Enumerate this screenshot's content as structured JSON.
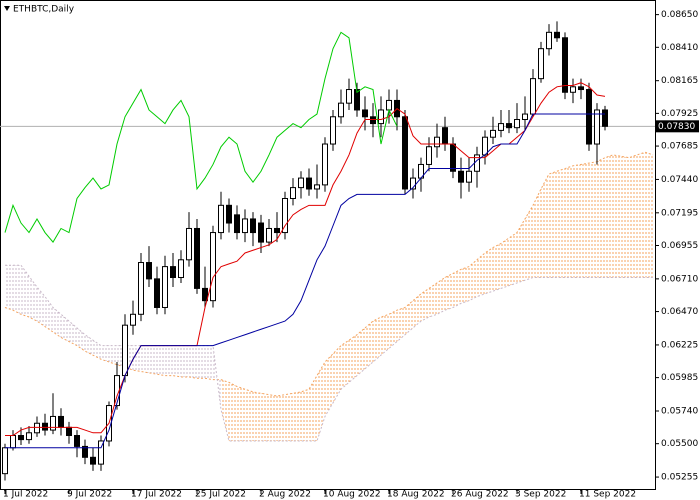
{
  "chart_data": {
    "type": "candlestick",
    "title": "ETHBTC,Daily",
    "categories": [
      "1 Jul 2022",
      null,
      null,
      null,
      null,
      null,
      null,
      null,
      "9 Jul 2022",
      null,
      null,
      null,
      null,
      null,
      null,
      null,
      "17 Jul 2022",
      null,
      null,
      null,
      null,
      null,
      null,
      null,
      "25 Jul 2022",
      null,
      null,
      null,
      null,
      null,
      null,
      null,
      "2 Aug 2022",
      null,
      null,
      null,
      null,
      null,
      null,
      null,
      "10 Aug 2022",
      null,
      null,
      null,
      null,
      null,
      null,
      null,
      "18 Aug 2022",
      null,
      null,
      null,
      null,
      null,
      null,
      null,
      "26 Aug 2022",
      null,
      null,
      null,
      null,
      null,
      null,
      null,
      "3 Sep 2022",
      null,
      null,
      null,
      null,
      null,
      null,
      null,
      "11 Sep 2022",
      null,
      null,
      null,
      null,
      null,
      null,
      null,
      null,
      null
    ],
    "ohlc": {
      "open": [
        0.0528,
        0.0547,
        0.0556,
        0.0553,
        0.0558,
        0.0565,
        0.056,
        0.057,
        0.0562,
        0.0556,
        0.0548,
        0.054,
        0.0535,
        0.0552,
        0.0578,
        0.06,
        0.0637,
        0.0645,
        0.0683,
        0.0671,
        0.065,
        0.068,
        0.0672,
        0.0685,
        0.0708,
        0.0664,
        0.0655,
        0.0705,
        0.0725,
        0.0718,
        0.0705,
        0.0715,
        0.0712,
        0.0698,
        0.0708,
        0.0705,
        0.073,
        0.0738,
        0.0745,
        0.0737,
        0.074,
        0.077,
        0.079,
        0.08,
        0.081,
        0.0795,
        0.079,
        0.0785,
        0.0795,
        0.0802,
        0.079,
        0.0737,
        0.0745,
        0.0755,
        0.0768,
        0.0782,
        0.077,
        0.075,
        0.0742,
        0.075,
        0.0762,
        0.0775,
        0.078,
        0.0785,
        0.0782,
        0.0788,
        0.0792,
        0.0818,
        0.084,
        0.0852,
        0.0848,
        0.0808,
        0.0812,
        0.081,
        0.077,
        0.0795
      ],
      "high": [
        0.055,
        0.056,
        0.0562,
        0.0563,
        0.057,
        0.0572,
        0.0587,
        0.0576,
        0.0566,
        0.056,
        0.0553,
        0.0547,
        0.0556,
        0.0581,
        0.061,
        0.0645,
        0.0655,
        0.069,
        0.0695,
        0.068,
        0.0688,
        0.069,
        0.0692,
        0.072,
        0.0715,
        0.068,
        0.071,
        0.0735,
        0.073,
        0.0725,
        0.0722,
        0.072,
        0.0718,
        0.0715,
        0.072,
        0.0735,
        0.0745,
        0.075,
        0.0752,
        0.0755,
        0.0775,
        0.0795,
        0.081,
        0.0818,
        0.0815,
        0.0805,
        0.08,
        0.0805,
        0.081,
        0.081,
        0.0795,
        0.0752,
        0.076,
        0.0775,
        0.0785,
        0.079,
        0.0775,
        0.076,
        0.076,
        0.0768,
        0.078,
        0.079,
        0.0795,
        0.0795,
        0.08,
        0.0805,
        0.0825,
        0.0845,
        0.0858,
        0.086,
        0.0852,
        0.0818,
        0.0818,
        0.0815,
        0.08,
        0.0798
      ],
      "low": [
        0.0523,
        0.0545,
        0.0549,
        0.055,
        0.0555,
        0.0556,
        0.0557,
        0.0556,
        0.055,
        0.054,
        0.0535,
        0.053,
        0.053,
        0.0548,
        0.0575,
        0.0595,
        0.063,
        0.064,
        0.0665,
        0.0645,
        0.0645,
        0.0665,
        0.0668,
        0.068,
        0.066,
        0.065,
        0.065,
        0.07,
        0.0705,
        0.07,
        0.0698,
        0.0695,
        0.069,
        0.0695,
        0.0698,
        0.07,
        0.0725,
        0.073,
        0.0732,
        0.073,
        0.0735,
        0.0765,
        0.0785,
        0.0795,
        0.079,
        0.078,
        0.0775,
        0.0775,
        0.0785,
        0.078,
        0.0733,
        0.073,
        0.0735,
        0.075,
        0.076,
        0.0765,
        0.0745,
        0.073,
        0.0735,
        0.0738,
        0.0755,
        0.077,
        0.0775,
        0.0778,
        0.0778,
        0.078,
        0.079,
        0.0815,
        0.0835,
        0.0845,
        0.0803,
        0.08,
        0.0803,
        0.0765,
        0.0755,
        0.078
      ],
      "close": [
        0.0547,
        0.0556,
        0.0553,
        0.0558,
        0.0565,
        0.056,
        0.057,
        0.0562,
        0.0556,
        0.0548,
        0.054,
        0.0535,
        0.0552,
        0.0578,
        0.06,
        0.0637,
        0.0645,
        0.0683,
        0.0671,
        0.065,
        0.068,
        0.0672,
        0.0685,
        0.0708,
        0.0664,
        0.0655,
        0.0705,
        0.0725,
        0.0712,
        0.0705,
        0.0715,
        0.0705,
        0.0698,
        0.0708,
        0.0705,
        0.073,
        0.0738,
        0.0745,
        0.0737,
        0.074,
        0.077,
        0.079,
        0.08,
        0.081,
        0.0795,
        0.079,
        0.0785,
        0.0795,
        0.0802,
        0.079,
        0.0737,
        0.0745,
        0.0755,
        0.0768,
        0.0775,
        0.077,
        0.075,
        0.0742,
        0.075,
        0.0762,
        0.0775,
        0.078,
        0.0785,
        0.0782,
        0.0788,
        0.0792,
        0.0818,
        0.084,
        0.0852,
        0.0848,
        0.0808,
        0.0812,
        0.081,
        0.077,
        0.0795,
        0.0783
      ],
      "up_color": "#ffffff",
      "down_color": "#000000",
      "outline": "#000000"
    },
    "lines": [
      {
        "color": "#e00000",
        "values": [
          0.0556,
          0.0556,
          0.056,
          0.0562,
          0.0562,
          0.0562,
          0.0562,
          0.0562,
          0.0562,
          0.0562,
          0.056,
          0.0558,
          0.0558,
          0.0565,
          0.0585,
          0.06,
          0.0612,
          0.0622,
          0.0622,
          0.0622,
          0.0622,
          0.0622,
          0.0622,
          0.0622,
          0.0622,
          0.065,
          0.0672,
          0.068,
          0.0682,
          0.0684,
          0.069,
          0.0692,
          0.0694,
          0.0696,
          0.07,
          0.071,
          0.0718,
          0.0722,
          0.0725,
          0.0725,
          0.0725,
          0.074,
          0.075,
          0.0762,
          0.0778,
          0.0788,
          0.0788,
          0.0788,
          0.079,
          0.0796,
          0.0792,
          0.0776,
          0.077,
          0.077,
          0.077,
          0.077,
          0.077,
          0.0765,
          0.076,
          0.076,
          0.076,
          0.0765,
          0.077,
          0.077,
          0.0775,
          0.078,
          0.079,
          0.08,
          0.0808,
          0.0812,
          0.0813,
          0.0813,
          0.0815,
          0.0812,
          0.0806,
          0.0805
        ]
      },
      {
        "color": "#0000a0",
        "values": [
          0.0547,
          0.0547,
          0.0547,
          0.0547,
          0.0547,
          0.0547,
          0.0547,
          0.0547,
          0.0547,
          0.0547,
          0.0547,
          0.0547,
          0.0547,
          0.056,
          0.058,
          0.06,
          0.0612,
          0.0622,
          0.0622,
          0.0622,
          0.0622,
          0.0622,
          0.0622,
          0.0622,
          0.0622,
          0.0622,
          0.0622,
          0.0624,
          0.0626,
          0.0628,
          0.063,
          0.0632,
          0.0634,
          0.0636,
          0.0638,
          0.064,
          0.0645,
          0.0655,
          0.067,
          0.0685,
          0.0695,
          0.071,
          0.0725,
          0.073,
          0.0733,
          0.0733,
          0.0733,
          0.0733,
          0.0733,
          0.0733,
          0.0733,
          0.0738,
          0.0745,
          0.0752,
          0.0752,
          0.0752,
          0.0752,
          0.0752,
          0.0752,
          0.0758,
          0.0762,
          0.0768,
          0.077,
          0.077,
          0.077,
          0.078,
          0.0792,
          0.0792,
          0.0792,
          0.0792,
          0.0792,
          0.0792,
          0.0792,
          0.0792,
          0.0792,
          0.0792
        ]
      },
      {
        "color": "#00cc00",
        "values": [
          0.0705,
          0.0725,
          0.0712,
          0.0705,
          0.0715,
          0.0705,
          0.0698,
          0.0708,
          0.0705,
          0.073,
          0.0738,
          0.0745,
          0.0737,
          0.074,
          0.077,
          0.079,
          0.08,
          0.081,
          0.0795,
          0.079,
          0.0785,
          0.0795,
          0.0802,
          0.079,
          0.0737,
          0.0745,
          0.0755,
          0.0768,
          0.0775,
          0.077,
          0.075,
          0.0742,
          0.075,
          0.0762,
          0.0775,
          0.078,
          0.0785,
          0.0782,
          0.0788,
          0.0792,
          0.0818,
          0.084,
          0.0852,
          0.0848,
          0.0808,
          0.0812,
          0.081,
          0.077,
          0.0795,
          0.0783,
          null,
          null,
          null,
          null,
          null,
          null,
          null,
          null,
          null,
          null,
          null,
          null,
          null,
          null,
          null,
          null,
          null,
          null,
          null,
          null,
          null,
          null,
          null,
          null,
          null,
          null
        ]
      }
    ],
    "cloud": {
      "a": {
        "color": "#f4a460",
        "values": [
          0.065,
          0.0648,
          0.0645,
          0.0643,
          0.064,
          0.0636,
          0.0632,
          0.0628,
          0.0625,
          0.0622,
          0.0618,
          0.0615,
          0.0612,
          0.061,
          0.0608,
          0.0606,
          0.0604,
          0.0603,
          0.0602,
          0.0601,
          0.06,
          0.06,
          0.0599,
          0.0599,
          0.0598,
          0.0598,
          0.0597,
          0.0597,
          0.0595,
          0.0592,
          0.059,
          0.0588,
          0.0587,
          0.0586,
          0.0585,
          0.0586,
          0.0587,
          0.0588,
          0.059,
          0.06,
          0.061,
          0.0616,
          0.0622,
          0.0626,
          0.063,
          0.0635,
          0.064,
          0.0643,
          0.0645,
          0.0648,
          0.065,
          0.0655,
          0.066,
          0.0664,
          0.0668,
          0.0672,
          0.0675,
          0.0678,
          0.068,
          0.0685,
          0.069,
          0.0694,
          0.0697,
          0.0701,
          0.0705,
          0.0715,
          0.0725,
          0.0737,
          0.0748,
          0.075,
          0.0752,
          0.0754,
          0.0755,
          0.0756,
          0.0757,
          0.076,
          0.0762,
          0.0761,
          0.076,
          0.0762,
          0.0764,
          0.0762
        ]
      },
      "b": {
        "color": "#c8b8c8",
        "values": [
          0.0681,
          0.0681,
          0.0681,
          0.0673,
          0.0665,
          0.0658,
          0.065,
          0.0645,
          0.064,
          0.0635,
          0.063,
          0.0626,
          0.0622,
          0.0622,
          0.0622,
          0.0622,
          0.0622,
          0.0622,
          0.0622,
          0.0622,
          0.0622,
          0.0622,
          0.0622,
          0.0622,
          0.0622,
          0.0622,
          0.0622,
          0.0575,
          0.0552,
          0.0552,
          0.0552,
          0.0552,
          0.0552,
          0.0552,
          0.0552,
          0.0552,
          0.0552,
          0.0552,
          0.0552,
          0.0552,
          0.057,
          0.058,
          0.059,
          0.0595,
          0.06,
          0.0605,
          0.061,
          0.0615,
          0.062,
          0.0625,
          0.063,
          0.0635,
          0.064,
          0.0643,
          0.0645,
          0.0648,
          0.065,
          0.0653,
          0.0655,
          0.0658,
          0.066,
          0.0662,
          0.0664,
          0.0666,
          0.0668,
          0.067,
          0.0672,
          0.0672,
          0.0672,
          0.0672,
          0.0672,
          0.0672,
          0.0672,
          0.0672,
          0.0672,
          0.0672,
          0.0672,
          0.0672,
          0.0672,
          0.0672,
          0.0672,
          0.0672
        ]
      }
    },
    "current_price": {
      "value": 0.0783,
      "label": "0.07830"
    },
    "ylim": [
      0.0516,
      0.0875
    ],
    "yticks": [
      {
        "value": 0.0865,
        "label": "0.08650"
      },
      {
        "value": 0.0841,
        "label": "0.08410"
      },
      {
        "value": 0.08165,
        "label": "0.08165"
      },
      {
        "value": 0.07925,
        "label": "0.07925"
      },
      {
        "value": 0.07685,
        "label": "0.07685"
      },
      {
        "value": 0.0744,
        "label": "0.07440"
      },
      {
        "value": 0.07195,
        "label": "0.07195"
      },
      {
        "value": 0.06955,
        "label": "0.06955"
      },
      {
        "value": 0.0671,
        "label": "0.06710"
      },
      {
        "value": 0.0647,
        "label": "0.06470"
      },
      {
        "value": 0.06225,
        "label": "0.06225"
      },
      {
        "value": 0.05985,
        "label": "0.05985"
      },
      {
        "value": 0.0574,
        "label": "0.05740"
      },
      {
        "value": 0.055,
        "label": "0.05500"
      },
      {
        "value": 0.05255,
        "label": "0.05255"
      }
    ],
    "grid": false
  }
}
